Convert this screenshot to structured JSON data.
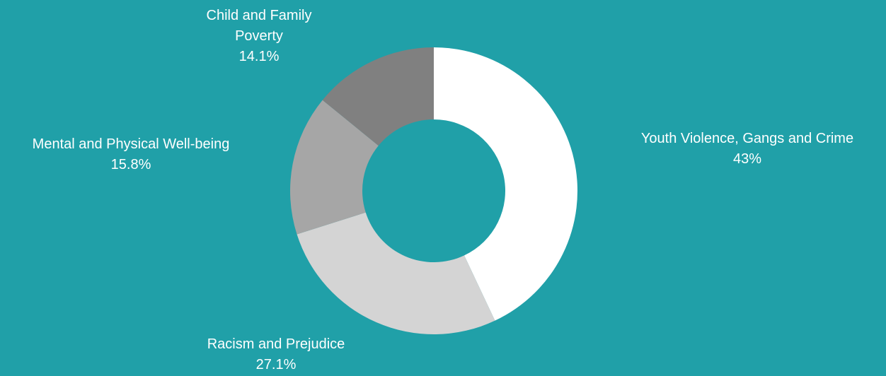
{
  "chart_data": {
    "type": "pie",
    "style": "donut",
    "background": "#20a0a8",
    "start_angle_deg": 0,
    "direction": "clockwise",
    "slices": [
      {
        "label": "Youth Violence, Gangs and Crime",
        "value": 43,
        "display": "43%",
        "color": "#ffffff"
      },
      {
        "label": "Racism and Prejudice",
        "value": 27.1,
        "display": "27.1%",
        "color": "#d4d4d4"
      },
      {
        "label": "Mental and Physical Well-being",
        "value": 15.8,
        "display": "15.8%",
        "color": "#a6a6a6"
      },
      {
        "label": "Child and Family Poverty",
        "value": 14.1,
        "display": "14.1%",
        "color": "#808080"
      }
    ]
  }
}
